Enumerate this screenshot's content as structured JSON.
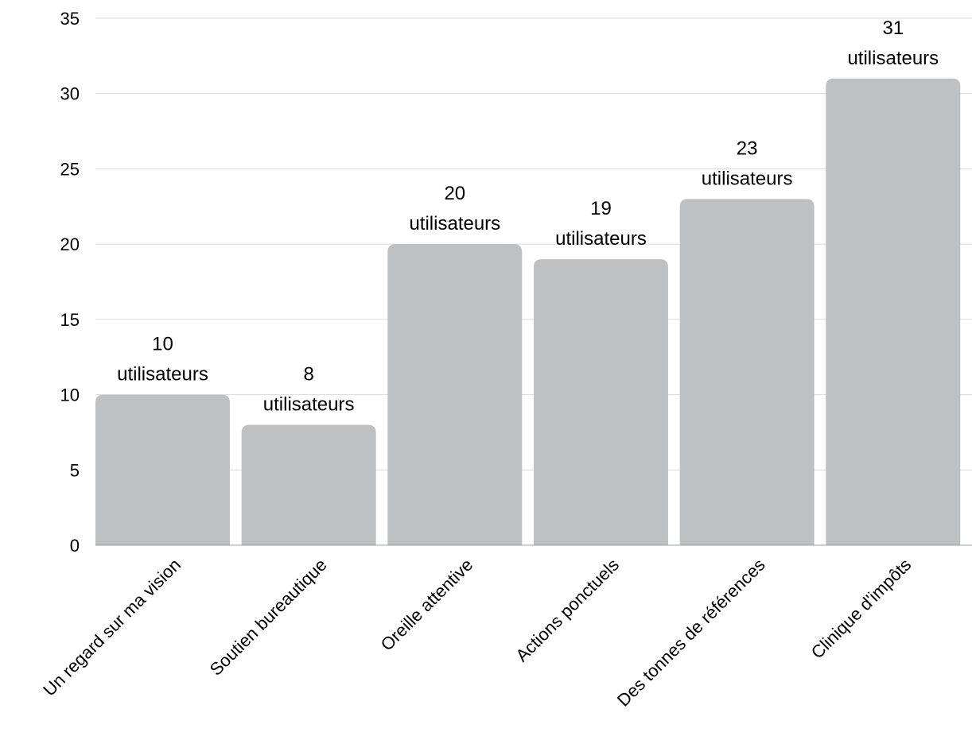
{
  "chart_data": {
    "type": "bar",
    "categories": [
      "Un regard sur ma vision",
      "Soutien bureautique",
      "Oreille attentive",
      "Actions ponctuels",
      "Des tonnes de références",
      "Clinique d'impôts"
    ],
    "values": [
      10,
      8,
      20,
      19,
      23,
      31
    ],
    "data_labels": [
      [
        "10",
        "utilisateurs"
      ],
      [
        "8",
        "utilisateurs"
      ],
      [
        "20",
        "utilisateurs"
      ],
      [
        "19",
        "utilisateurs"
      ],
      [
        "23",
        "utilisateurs"
      ],
      [
        "31",
        "utilisateurs"
      ]
    ],
    "yticks": [
      0,
      5,
      10,
      15,
      20,
      25,
      30,
      35
    ],
    "ylim": [
      0,
      35
    ],
    "title": "",
    "xlabel": "",
    "ylabel": "",
    "grid": true,
    "legend": false,
    "colors": {
      "bar": "#bfc0c2",
      "grid": "#d9d9d9",
      "axis": "#9e9e9e",
      "text": "#000000"
    }
  }
}
